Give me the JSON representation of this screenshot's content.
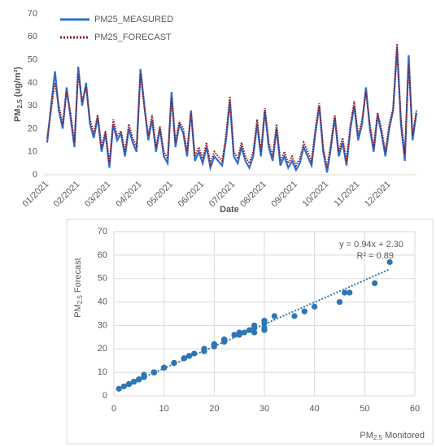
{
  "chart_data": [
    {
      "type": "line",
      "ylabel": [
        "PM",
        "2.5",
        " (ug/m³)"
      ],
      "xlabel": "Date",
      "categories": [
        "01/2021",
        null,
        null,
        null,
        null,
        null,
        null,
        null,
        "02/2021",
        null,
        null,
        null,
        null,
        null,
        null,
        null,
        "03/2021",
        null,
        null,
        null,
        null,
        null,
        null,
        null,
        "04/2021",
        null,
        null,
        null,
        null,
        null,
        null,
        null,
        "05/2021",
        null,
        null,
        null,
        null,
        null,
        null,
        null,
        "06/2021",
        null,
        null,
        null,
        null,
        null,
        null,
        null,
        "07/2021",
        null,
        null,
        null,
        null,
        null,
        null,
        null,
        "08/2021",
        null,
        null,
        null,
        null,
        null,
        null,
        null,
        "09/2021",
        null,
        null,
        null,
        null,
        null,
        null,
        null,
        "10/2021",
        null,
        null,
        null,
        null,
        null,
        null,
        null,
        "11/2021",
        null,
        null,
        null,
        null,
        null,
        null,
        null,
        "12/2021",
        null,
        null,
        null,
        null,
        null,
        null,
        null
      ],
      "series": [
        {
          "name": "PM25_MEASURED",
          "color": "#2f6fd1",
          "dash": "solid",
          "values": [
            14,
            30,
            45,
            28,
            20,
            38,
            25,
            12,
            47,
            30,
            40,
            22,
            16,
            25,
            10,
            18,
            3,
            22,
            15,
            18,
            8,
            20,
            14,
            10,
            46,
            30,
            15,
            24,
            10,
            20,
            8,
            5,
            36,
            12,
            22,
            18,
            8,
            28,
            6,
            10,
            5,
            12,
            3,
            8,
            6,
            4,
            15,
            32,
            8,
            5,
            12,
            6,
            3,
            8,
            22,
            8,
            28,
            12,
            6,
            20,
            4,
            8,
            3,
            6,
            2,
            5,
            12,
            8,
            4,
            18,
            30,
            10,
            1,
            12,
            25,
            8,
            14,
            4,
            20,
            30,
            15,
            22,
            38,
            20,
            10,
            26,
            18,
            8,
            20,
            28,
            55,
            22,
            6,
            52,
            15,
            27
          ]
        },
        {
          "name": "PM25_FORECAST",
          "color": "#8b1a1a",
          "dash": "dotted",
          "values": [
            16,
            28,
            40,
            30,
            22,
            36,
            27,
            14,
            44,
            32,
            38,
            24,
            18,
            26,
            12,
            19,
            5,
            24,
            17,
            19,
            10,
            22,
            16,
            12,
            44,
            29,
            17,
            26,
            12,
            21,
            10,
            7,
            34,
            14,
            23,
            20,
            10,
            27,
            8,
            12,
            7,
            14,
            5,
            10,
            8,
            6,
            17,
            34,
            10,
            7,
            14,
            8,
            5,
            10,
            24,
            10,
            29,
            14,
            8,
            22,
            6,
            10,
            5,
            8,
            4,
            7,
            14,
            10,
            6,
            20,
            31,
            12,
            3,
            14,
            26,
            10,
            16,
            6,
            22,
            32,
            17,
            24,
            36,
            22,
            12,
            27,
            20,
            10,
            22,
            29,
            57,
            24,
            9,
            48,
            17,
            28
          ]
        }
      ],
      "ylim": [
        0,
        70
      ],
      "yticks": [
        0,
        10,
        20,
        30,
        40,
        50,
        60,
        70
      ],
      "grid": false,
      "legend": "top-left"
    },
    {
      "type": "scatter",
      "ylabel": [
        "PM",
        "2.5",
        " Forecast"
      ],
      "xlabel": [
        "PM",
        "2.5",
        " Monitored"
      ],
      "color": "#2e75b6",
      "x": [
        14,
        30,
        45,
        28,
        20,
        38,
        25,
        12,
        47,
        30,
        40,
        22,
        16,
        25,
        10,
        18,
        3,
        22,
        15,
        18,
        8,
        20,
        14,
        10,
        46,
        30,
        15,
        24,
        10,
        20,
        8,
        5,
        36,
        12,
        22,
        18,
        8,
        28,
        6,
        10,
        5,
        12,
        3,
        8,
        6,
        4,
        15,
        32,
        8,
        5,
        12,
        6,
        3,
        8,
        22,
        8,
        28,
        12,
        6,
        20,
        4,
        8,
        3,
        6,
        2,
        5,
        12,
        8,
        4,
        18,
        30,
        10,
        1,
        12,
        25,
        8,
        14,
        4,
        20,
        30,
        15,
        22,
        38,
        20,
        10,
        26,
        18,
        8,
        20,
        28,
        55,
        22,
        6,
        52,
        15,
        27
      ],
      "y": [
        16,
        28,
        40,
        30,
        22,
        36,
        27,
        14,
        44,
        32,
        38,
        24,
        18,
        26,
        12,
        19,
        5,
        24,
        17,
        19,
        10,
        22,
        16,
        12,
        44,
        29,
        17,
        26,
        12,
        21,
        10,
        7,
        34,
        14,
        23,
        20,
        10,
        27,
        8,
        12,
        7,
        14,
        5,
        10,
        8,
        6,
        17,
        34,
        10,
        7,
        14,
        8,
        5,
        10,
        24,
        10,
        29,
        14,
        8,
        22,
        6,
        10,
        5,
        8,
        4,
        7,
        14,
        10,
        6,
        20,
        31,
        12,
        3,
        14,
        26,
        10,
        16,
        6,
        22,
        32,
        17,
        24,
        36,
        22,
        12,
        27,
        20,
        10,
        22,
        29,
        57,
        24,
        9,
        48,
        17,
        28
      ],
      "trendline": {
        "slope": 0.94,
        "intercept": 2.3,
        "equation": "y = 0.94x + 2.30",
        "r2": "R² = 0.89"
      },
      "xlim": [
        0,
        60
      ],
      "xticks": [
        0,
        10,
        20,
        30,
        40,
        50,
        60
      ],
      "ylim": [
        0,
        70
      ],
      "yticks": [
        0,
        10,
        20,
        30,
        40,
        50,
        60,
        70
      ],
      "grid": true
    }
  ]
}
